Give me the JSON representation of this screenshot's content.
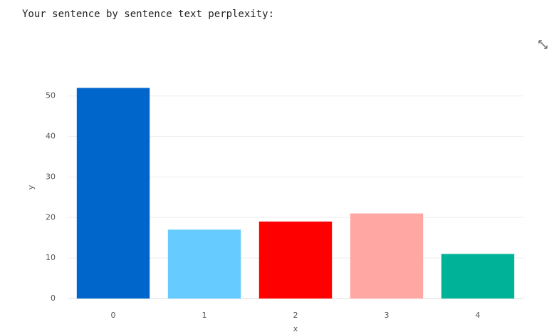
{
  "chart_data": {
    "type": "bar",
    "title": "Your sentence by sentence text perplexity:",
    "x_label": "x",
    "y_label": "y",
    "categories": [
      "0",
      "1",
      "2",
      "3",
      "4"
    ],
    "values": [
      52,
      17,
      19,
      21,
      11
    ],
    "colors": [
      "#0066cc",
      "#66ccff",
      "#ff0000",
      "#ffa8a3",
      "#00b398"
    ],
    "ylim": [
      0,
      54.7
    ],
    "yticks": [
      0,
      10,
      20,
      30,
      40,
      50
    ],
    "grid": true
  }
}
